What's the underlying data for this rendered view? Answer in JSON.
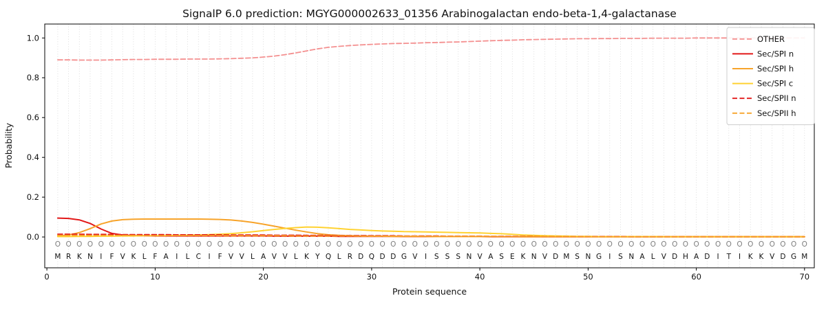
{
  "chart_data": {
    "type": "line",
    "title": "SignalP 6.0 prediction: MGYG000002633_01356 Arabinogalactan endo-beta-1,4-galactanase",
    "xlabel": "Protein sequence",
    "ylabel": "Probability",
    "xlim": [
      -0.2,
      70.9
    ],
    "ylim": [
      -0.155,
      1.07
    ],
    "grid": "vertical-dotted-per-residue",
    "legend_position": "upper right",
    "xticks": [
      {
        "v": 0,
        "label": "0"
      },
      {
        "v": 10,
        "label": "10"
      },
      {
        "v": 20,
        "label": "20"
      },
      {
        "v": 30,
        "label": "30"
      },
      {
        "v": 40,
        "label": "40"
      },
      {
        "v": 50,
        "label": "50"
      },
      {
        "v": 60,
        "label": "60"
      },
      {
        "v": 70,
        "label": "70"
      }
    ],
    "yticks": [
      {
        "v": 0.0,
        "label": "0.0"
      },
      {
        "v": 0.2,
        "label": "0.2"
      },
      {
        "v": 0.4,
        "label": "0.4"
      },
      {
        "v": 0.6,
        "label": "0.6"
      },
      {
        "v": 0.8,
        "label": "0.8"
      },
      {
        "v": 1.0,
        "label": "1.0"
      }
    ],
    "colors": {
      "grid": "#d4d4d4",
      "frame": "#000000",
      "text": "#111111",
      "pred_label": "#7f7f7f",
      "legend_border": "#cccccc"
    },
    "sequence": "MRKNIFVKLFAILCIFVVLAVVLKYQLRDQDDGVISSSNVASEKNVDMSNGISNALVDHADITIKKVDGM",
    "pred_labels": "OOOOOOOOOOOOOOOOOOOOOOOOOOOOOOOOOOOOOOOOOOOOOOOOOOOOOOOOOOOOOOOOOOOOOO",
    "series": [
      {
        "name": "OTHER",
        "color": "#f48f8f",
        "dashed": true,
        "width": 1.8,
        "values": [
          0.89,
          0.89,
          0.889,
          0.889,
          0.889,
          0.89,
          0.891,
          0.892,
          0.892,
          0.893,
          0.893,
          0.893,
          0.894,
          0.894,
          0.894,
          0.895,
          0.896,
          0.898,
          0.9,
          0.904,
          0.909,
          0.916,
          0.925,
          0.935,
          0.945,
          0.953,
          0.958,
          0.962,
          0.965,
          0.968,
          0.97,
          0.972,
          0.973,
          0.974,
          0.976,
          0.977,
          0.979,
          0.98,
          0.982,
          0.984,
          0.986,
          0.988,
          0.989,
          0.991,
          0.992,
          0.993,
          0.994,
          0.995,
          0.996,
          0.996,
          0.997,
          0.997,
          0.998,
          0.998,
          0.998,
          0.999,
          0.999,
          0.999,
          0.999,
          1.0,
          1.0,
          1.0,
          1.0,
          1.0,
          1.0,
          1.0,
          1.0,
          1.0,
          1.0,
          1.0
        ]
      },
      {
        "name": "Sec/SPI n",
        "color": "#e21717",
        "dashed": false,
        "width": 2,
        "values": [
          0.095,
          0.093,
          0.086,
          0.068,
          0.04,
          0.018,
          0.01,
          0.007,
          0.006,
          0.005,
          0.005,
          0.005,
          0.005,
          0.005,
          0.005,
          0.005,
          0.005,
          0.005,
          0.005,
          0.005,
          0.004,
          0.004,
          0.004,
          0.004,
          0.004,
          0.004,
          0.003,
          0.003,
          0.003,
          0.003,
          0.003,
          0.003,
          0.002,
          0.002,
          0.002,
          0.002,
          0.002,
          0.002,
          0.002,
          0.002,
          0.001,
          0.001,
          0.001,
          0.001,
          0.001,
          0.001,
          0.001,
          0.001,
          0.001,
          0.001,
          0.001,
          0.001,
          0.001,
          0.001,
          0.001,
          0.001,
          0.001,
          0.001,
          0.001,
          0.001,
          0.001,
          0.001,
          0.001,
          0.001,
          0.001,
          0.001,
          0.001,
          0.001,
          0.001,
          0.001
        ]
      },
      {
        "name": "Sec/SPI h",
        "color": "#f7a329",
        "dashed": false,
        "width": 2,
        "values": [
          0.004,
          0.01,
          0.022,
          0.042,
          0.065,
          0.08,
          0.087,
          0.089,
          0.09,
          0.09,
          0.09,
          0.09,
          0.09,
          0.09,
          0.089,
          0.088,
          0.085,
          0.08,
          0.073,
          0.064,
          0.054,
          0.044,
          0.034,
          0.025,
          0.017,
          0.011,
          0.008,
          0.006,
          0.005,
          0.004,
          0.004,
          0.003,
          0.003,
          0.003,
          0.003,
          0.002,
          0.002,
          0.002,
          0.002,
          0.002,
          0.002,
          0.002,
          0.002,
          0.001,
          0.001,
          0.001,
          0.001,
          0.001,
          0.001,
          0.001,
          0.001,
          0.001,
          0.001,
          0.001,
          0.001,
          0.001,
          0.001,
          0.001,
          0.001,
          0.001,
          0.001,
          0.001,
          0.001,
          0.001,
          0.001,
          0.001,
          0.001,
          0.001,
          0.001,
          0.001
        ]
      },
      {
        "name": "Sec/SPI c",
        "color": "#ffd230",
        "dashed": false,
        "width": 2,
        "values": [
          0.002,
          0.002,
          0.003,
          0.003,
          0.004,
          0.004,
          0.005,
          0.005,
          0.006,
          0.006,
          0.007,
          0.008,
          0.009,
          0.01,
          0.012,
          0.014,
          0.017,
          0.021,
          0.026,
          0.032,
          0.038,
          0.043,
          0.047,
          0.05,
          0.049,
          0.046,
          0.042,
          0.038,
          0.035,
          0.032,
          0.03,
          0.029,
          0.027,
          0.026,
          0.025,
          0.024,
          0.023,
          0.022,
          0.021,
          0.02,
          0.018,
          0.016,
          0.013,
          0.01,
          0.008,
          0.006,
          0.005,
          0.004,
          0.003,
          0.003,
          0.002,
          0.002,
          0.002,
          0.002,
          0.002,
          0.002,
          0.001,
          0.001,
          0.001,
          0.001,
          0.001,
          0.001,
          0.001,
          0.001,
          0.001,
          0.001,
          0.001,
          0.001,
          0.001,
          0.001
        ]
      },
      {
        "name": "Sec/SPII n",
        "color": "#e21717",
        "dashed": true,
        "width": 1.8,
        "values": [
          0.014,
          0.014,
          0.014,
          0.013,
          0.013,
          0.013,
          0.012,
          0.012,
          0.012,
          0.012,
          0.012,
          0.011,
          0.011,
          0.011,
          0.011,
          0.011,
          0.01,
          0.01,
          0.01,
          0.01,
          0.009,
          0.009,
          0.009,
          0.008,
          0.008,
          0.008,
          0.007,
          0.007,
          0.007,
          0.006,
          0.006,
          0.006,
          0.005,
          0.005,
          0.005,
          0.005,
          0.004,
          0.004,
          0.004,
          0.004,
          0.003,
          0.003,
          0.003,
          0.003,
          0.003,
          0.002,
          0.002,
          0.002,
          0.002,
          0.002,
          0.002,
          0.002,
          0.002,
          0.001,
          0.001,
          0.001,
          0.001,
          0.001,
          0.001,
          0.001,
          0.001,
          0.001,
          0.001,
          0.001,
          0.001,
          0.001,
          0.001,
          0.001,
          0.001,
          0.001
        ]
      },
      {
        "name": "Sec/SPII h",
        "color": "#f7a329",
        "dashed": true,
        "width": 1.8,
        "values": [
          0.008,
          0.008,
          0.008,
          0.008,
          0.008,
          0.008,
          0.008,
          0.008,
          0.007,
          0.007,
          0.007,
          0.007,
          0.007,
          0.007,
          0.007,
          0.007,
          0.006,
          0.006,
          0.006,
          0.006,
          0.006,
          0.006,
          0.005,
          0.005,
          0.005,
          0.005,
          0.005,
          0.005,
          0.004,
          0.004,
          0.004,
          0.004,
          0.004,
          0.004,
          0.003,
          0.003,
          0.003,
          0.003,
          0.003,
          0.003,
          0.003,
          0.002,
          0.002,
          0.002,
          0.002,
          0.002,
          0.002,
          0.002,
          0.002,
          0.002,
          0.001,
          0.001,
          0.001,
          0.001,
          0.001,
          0.001,
          0.001,
          0.001,
          0.001,
          0.001,
          0.001,
          0.001,
          0.001,
          0.001,
          0.001,
          0.001,
          0.001,
          0.001,
          0.001,
          0.001
        ]
      }
    ]
  }
}
